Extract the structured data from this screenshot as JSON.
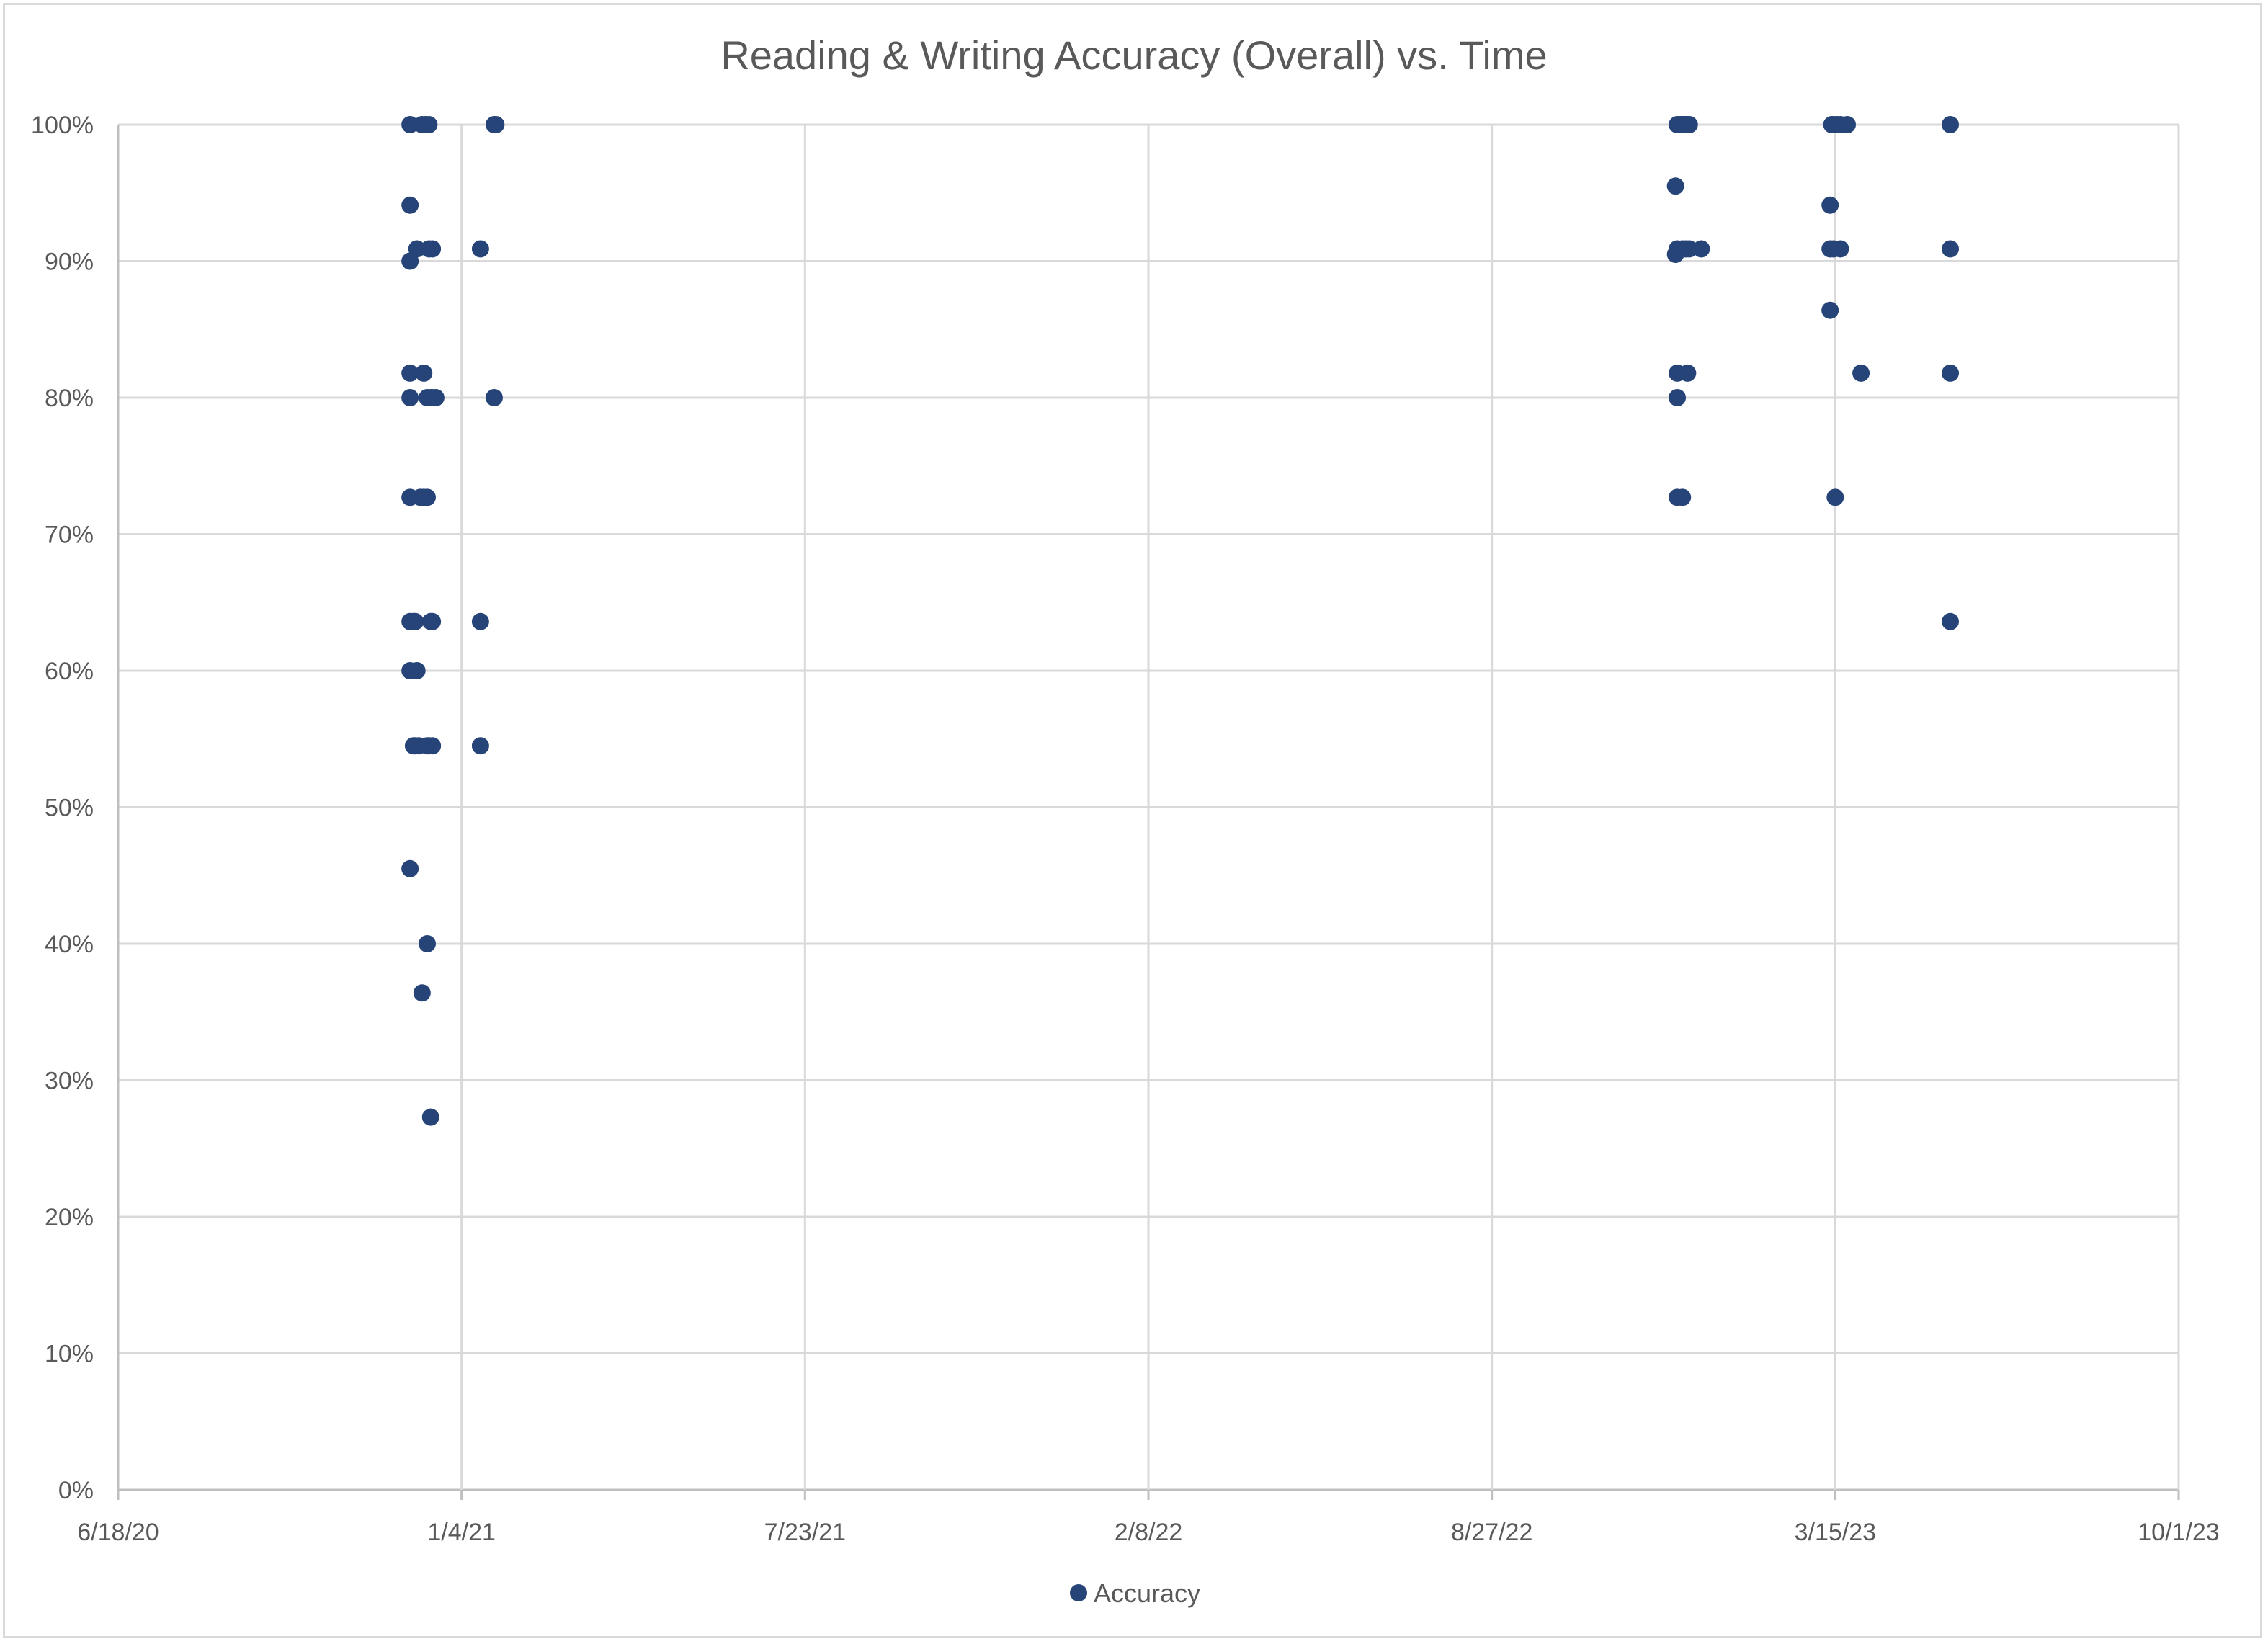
{
  "chart_data": {
    "type": "scatter",
    "title": "Reading & Writing Accuracy (Overall) vs. Time",
    "xlabel": "",
    "ylabel": "",
    "x_axis_type": "date",
    "xlim": [
      "2020-06-18",
      "2023-10-01"
    ],
    "x_ticks": [
      "6/18/20",
      "1/4/21",
      "7/23/21",
      "2/8/22",
      "8/27/22",
      "3/15/23",
      "10/1/23"
    ],
    "ylim": [
      0,
      100
    ],
    "y_ticks": [
      "0%",
      "10%",
      "20%",
      "30%",
      "40%",
      "50%",
      "60%",
      "70%",
      "80%",
      "90%",
      "100%"
    ],
    "grid": true,
    "legend_position": "bottom",
    "series": [
      {
        "name": "Accuracy",
        "color": "#264478",
        "points": [
          {
            "x": "2020-12-05",
            "y": 100
          },
          {
            "x": "2020-12-05",
            "y": 94.1
          },
          {
            "x": "2020-12-05",
            "y": 90
          },
          {
            "x": "2020-12-05",
            "y": 81.8
          },
          {
            "x": "2020-12-05",
            "y": 80
          },
          {
            "x": "2020-12-05",
            "y": 72.7
          },
          {
            "x": "2020-12-05",
            "y": 63.6
          },
          {
            "x": "2020-12-05",
            "y": 60
          },
          {
            "x": "2020-12-05",
            "y": 45.5
          },
          {
            "x": "2020-12-07",
            "y": 63.6
          },
          {
            "x": "2020-12-07",
            "y": 54.5
          },
          {
            "x": "2020-12-08",
            "y": 63.6
          },
          {
            "x": "2020-12-08",
            "y": 54.5
          },
          {
            "x": "2020-12-09",
            "y": 90.9
          },
          {
            "x": "2020-12-09",
            "y": 60
          },
          {
            "x": "2020-12-10",
            "y": 54.5
          },
          {
            "x": "2020-12-11",
            "y": 72.7
          },
          {
            "x": "2020-12-12",
            "y": 100
          },
          {
            "x": "2020-12-12",
            "y": 36.4
          },
          {
            "x": "2020-12-13",
            "y": 81.8
          },
          {
            "x": "2020-12-13",
            "y": 72.7
          },
          {
            "x": "2020-12-14",
            "y": 100
          },
          {
            "x": "2020-12-15",
            "y": 80
          },
          {
            "x": "2020-12-15",
            "y": 72.7
          },
          {
            "x": "2020-12-15",
            "y": 54.5
          },
          {
            "x": "2020-12-15",
            "y": 40
          },
          {
            "x": "2020-12-16",
            "y": 100
          },
          {
            "x": "2020-12-16",
            "y": 90.9
          },
          {
            "x": "2020-12-16",
            "y": 54.5
          },
          {
            "x": "2020-12-17",
            "y": 80
          },
          {
            "x": "2020-12-17",
            "y": 63.6
          },
          {
            "x": "2020-12-17",
            "y": 27.3
          },
          {
            "x": "2020-12-18",
            "y": 90.9
          },
          {
            "x": "2020-12-18",
            "y": 80
          },
          {
            "x": "2020-12-18",
            "y": 63.6
          },
          {
            "x": "2020-12-18",
            "y": 54.5
          },
          {
            "x": "2020-12-20",
            "y": 80
          },
          {
            "x": "2021-01-15",
            "y": 90.9
          },
          {
            "x": "2021-01-15",
            "y": 63.6
          },
          {
            "x": "2021-01-15",
            "y": 54.5
          },
          {
            "x": "2021-01-23",
            "y": 100
          },
          {
            "x": "2021-01-23",
            "y": 80
          },
          {
            "x": "2021-01-24",
            "y": 100
          },
          {
            "x": "2022-12-12",
            "y": 95.5
          },
          {
            "x": "2022-12-12",
            "y": 90.5
          },
          {
            "x": "2022-12-13",
            "y": 100
          },
          {
            "x": "2022-12-13",
            "y": 90.9
          },
          {
            "x": "2022-12-13",
            "y": 81.8
          },
          {
            "x": "2022-12-13",
            "y": 80
          },
          {
            "x": "2022-12-13",
            "y": 72.7
          },
          {
            "x": "2022-12-14",
            "y": 100
          },
          {
            "x": "2022-12-15",
            "y": 100
          },
          {
            "x": "2022-12-16",
            "y": 100
          },
          {
            "x": "2022-12-16",
            "y": 90.9
          },
          {
            "x": "2022-12-16",
            "y": 72.7
          },
          {
            "x": "2022-12-17",
            "y": 100
          },
          {
            "x": "2022-12-18",
            "y": 100
          },
          {
            "x": "2022-12-18",
            "y": 90.9
          },
          {
            "x": "2022-12-19",
            "y": 100
          },
          {
            "x": "2022-12-19",
            "y": 81.8
          },
          {
            "x": "2022-12-20",
            "y": 100
          },
          {
            "x": "2022-12-20",
            "y": 90.9
          },
          {
            "x": "2022-12-27",
            "y": 90.9
          },
          {
            "x": "2023-03-12",
            "y": 94.1
          },
          {
            "x": "2023-03-12",
            "y": 90.9
          },
          {
            "x": "2023-03-12",
            "y": 86.4
          },
          {
            "x": "2023-03-13",
            "y": 100
          },
          {
            "x": "2023-03-14",
            "y": 100
          },
          {
            "x": "2023-03-14",
            "y": 90.9
          },
          {
            "x": "2023-03-15",
            "y": 72.7
          },
          {
            "x": "2023-03-16",
            "y": 100
          },
          {
            "x": "2023-03-18",
            "y": 100
          },
          {
            "x": "2023-03-18",
            "y": 90.9
          },
          {
            "x": "2023-03-22",
            "y": 100
          },
          {
            "x": "2023-03-30",
            "y": 81.8
          },
          {
            "x": "2023-05-21",
            "y": 100
          },
          {
            "x": "2023-05-21",
            "y": 90.9
          },
          {
            "x": "2023-05-21",
            "y": 81.8
          },
          {
            "x": "2023-05-21",
            "y": 63.6
          }
        ]
      }
    ]
  }
}
